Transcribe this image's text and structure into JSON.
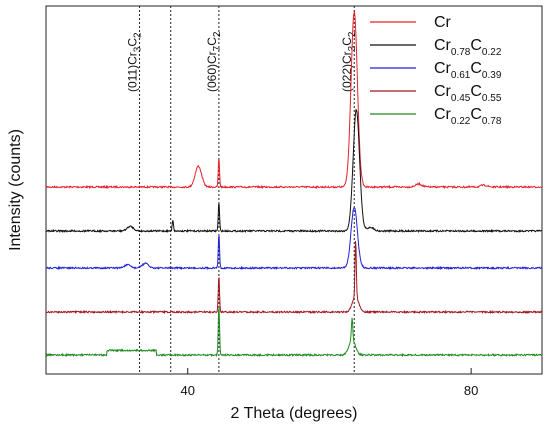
{
  "chart_data": {
    "type": "line",
    "xlabel": "2 Theta (degrees)",
    "ylabel": "Intensity (counts)",
    "xlim": [
      20,
      90
    ],
    "xticks": [
      40,
      80
    ],
    "y_ticks_shown": false,
    "grid": false,
    "legend_position": "top-right",
    "series": [
      {
        "base": "Cr",
        "sub1": "",
        "base2": "",
        "sub2": "",
        "color": "#e8202a",
        "offset": 4,
        "peaks": [
          [
            41.5,
            0.55
          ],
          [
            63.5,
            4.6
          ],
          [
            81.8,
            0.05
          ],
          [
            72.6,
            0.08
          ]
        ],
        "sharp": [
          [
            44.4,
            0.75
          ]
        ]
      },
      {
        "base": "Cr",
        "sub1": "0.78",
        "base2": "C",
        "sub2": "0.22",
        "color": "#111111",
        "offset": 3,
        "peaks": [
          [
            63.8,
            3.2
          ],
          [
            31.9,
            0.12
          ],
          [
            65.8,
            0.1
          ]
        ],
        "sharp": [
          [
            44.4,
            0.75
          ],
          [
            37.9,
            0.3
          ]
        ]
      },
      {
        "base": "Cr",
        "sub1": "0.61",
        "base2": "C",
        "sub2": "0.39",
        "color": "#2020d8",
        "offset": 2,
        "peaks": [
          [
            63.5,
            1.6
          ],
          [
            34.0,
            0.12
          ],
          [
            31.5,
            0.08
          ]
        ],
        "sharp": [
          [
            44.4,
            0.9
          ]
        ]
      },
      {
        "base": "Cr",
        "sub1": "0.45",
        "base2": "C",
        "sub2": "0.55",
        "color": "#a01820",
        "offset": 1,
        "peaks": [
          [
            63.7,
            0.4
          ]
        ],
        "sharp": [
          [
            44.4,
            0.95
          ],
          [
            63.7,
            1.5
          ]
        ]
      },
      {
        "base": "Cr",
        "sub1": "0.22",
        "base2": "C",
        "sub2": "0.78",
        "color": "#1e8a1e",
        "offset": 0,
        "peaks": [
          [
            63.2,
            0.4
          ]
        ],
        "sharp": [
          [
            44.4,
            1.3
          ],
          [
            63.2,
            0.6
          ]
        ],
        "steps": [
          [
            28.6,
            35.6,
            0.12
          ]
        ]
      }
    ],
    "reference_lines": [
      {
        "x": 33.2,
        "label_main": "(011)Cr",
        "label_sub": "3",
        "label_main2": "C",
        "label_sub2": "2"
      },
      {
        "x": 37.6,
        "label_main": "",
        "label_sub": "",
        "label_main2": "",
        "label_sub2": ""
      },
      {
        "x": 44.4,
        "label_main": "(060)Cr",
        "label_sub": "7",
        "label_main2": "C",
        "label_sub2": "2"
      },
      {
        "x": 63.5,
        "label_main": "(022)Cr",
        "label_sub": "3",
        "label_main2": "C",
        "label_sub2": "2"
      }
    ]
  }
}
